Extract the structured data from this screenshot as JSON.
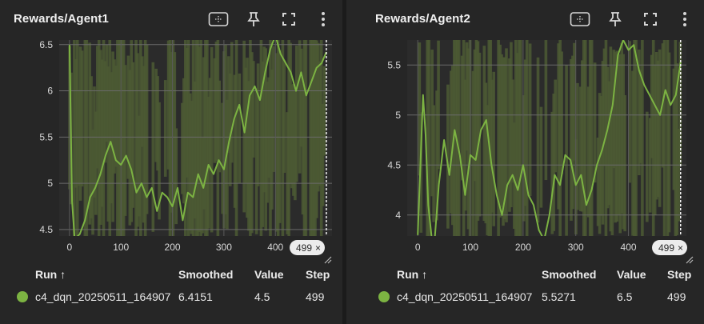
{
  "theme": {
    "series_color": "#7cb342",
    "band_color": "#4c5a34",
    "grid_color": "#6a6a6a"
  },
  "panels": [
    {
      "title": "Rewards/Agent1",
      "toolbar": [
        "fit-domain-icon",
        "pin-icon",
        "fullscreen-icon",
        "more-vert-icon"
      ],
      "chart_data": {
        "type": "line",
        "title": "Rewards/Agent1",
        "xlabel": "",
        "ylabel": "",
        "xlim": [
          -20,
          510
        ],
        "ylim": [
          4.43,
          6.55
        ],
        "x_ticks": [
          0,
          100,
          200,
          300,
          400
        ],
        "y_ticks": [
          4.5,
          5,
          5.5,
          6,
          6.5
        ],
        "y_tick_labels": [
          "4.5",
          "5",
          "5.5",
          "6",
          "6.5"
        ],
        "grid": true,
        "legend": "none",
        "series": [
          {
            "name": "c4_dqn_20250511_164907",
            "x": [
              0,
              5,
              10,
              20,
              30,
              40,
              50,
              60,
              70,
              80,
              90,
              100,
              110,
              120,
              130,
              140,
              150,
              160,
              170,
              180,
              190,
              200,
              210,
              220,
              230,
              240,
              250,
              260,
              270,
              280,
              290,
              300,
              310,
              320,
              330,
              340,
              350,
              360,
              370,
              380,
              390,
              400,
              410,
              420,
              430,
              440,
              450,
              460,
              470,
              480,
              490,
              499
            ],
            "y": [
              6.5,
              4.8,
              4.4,
              4.45,
              4.6,
              4.85,
              4.95,
              5.1,
              5.3,
              5.45,
              5.25,
              5.2,
              5.3,
              5.15,
              4.9,
              5.0,
              4.85,
              4.95,
              4.7,
              4.9,
              4.85,
              4.75,
              4.95,
              4.6,
              4.9,
              4.85,
              5.1,
              4.95,
              5.2,
              5.1,
              5.25,
              5.15,
              5.45,
              5.7,
              5.85,
              5.55,
              5.95,
              6.05,
              5.9,
              6.2,
              6.45,
              6.6,
              6.4,
              6.3,
              6.2,
              6.0,
              6.2,
              5.95,
              6.1,
              6.25,
              6.3,
              6.42
            ]
          }
        ],
        "current_step": 499
      },
      "step_badge": "499",
      "table": {
        "headers": {
          "run": "Run",
          "smoothed": "Smoothed",
          "value": "Value",
          "step": "Step"
        },
        "rows": [
          {
            "run": "c4_dqn_20250511_164907",
            "smoothed": "6.4151",
            "value": "4.5",
            "step": "499"
          }
        ]
      }
    },
    {
      "title": "Rewards/Agent2",
      "toolbar": [
        "fit-domain-icon",
        "pin-icon",
        "fullscreen-icon",
        "more-vert-icon"
      ],
      "chart_data": {
        "type": "line",
        "title": "Rewards/Agent2",
        "xlabel": "",
        "ylabel": "",
        "xlim": [
          -20,
          510
        ],
        "ylim": [
          3.79,
          5.75
        ],
        "x_ticks": [
          0,
          100,
          200,
          300,
          400
        ],
        "y_ticks": [
          4,
          4.5,
          5,
          5.5
        ],
        "y_tick_labels": [
          "4",
          "4.5",
          "5",
          "5.5"
        ],
        "grid": true,
        "legend": "none",
        "series": [
          {
            "name": "c4_dqn_20250511_164907",
            "x": [
              0,
              5,
              10,
              15,
              20,
              30,
              40,
              50,
              60,
              70,
              80,
              90,
              100,
              110,
              120,
              130,
              140,
              150,
              160,
              170,
              180,
              190,
              200,
              210,
              220,
              230,
              240,
              250,
              260,
              270,
              280,
              290,
              300,
              310,
              320,
              330,
              340,
              350,
              360,
              370,
              380,
              390,
              400,
              410,
              420,
              430,
              440,
              450,
              460,
              470,
              480,
              490,
              499
            ],
            "y": [
              3.8,
              4.5,
              5.2,
              4.8,
              4.1,
              3.6,
              4.3,
              4.75,
              4.4,
              4.85,
              4.6,
              4.2,
              4.6,
              4.55,
              4.85,
              4.95,
              4.5,
              4.2,
              4.0,
              4.3,
              4.4,
              4.25,
              4.5,
              4.2,
              4.1,
              3.85,
              3.75,
              4.0,
              4.4,
              4.3,
              4.6,
              4.55,
              4.3,
              4.4,
              4.1,
              4.25,
              4.5,
              4.65,
              4.85,
              5.1,
              5.6,
              5.75,
              5.65,
              5.7,
              5.45,
              5.3,
              5.2,
              5.1,
              5.0,
              5.25,
              5.1,
              5.2,
              5.53
            ]
          }
        ],
        "current_step": 499
      },
      "step_badge": "499",
      "table": {
        "headers": {
          "run": "Run",
          "smoothed": "Smoothed",
          "value": "Value",
          "step": "Step"
        },
        "rows": [
          {
            "run": "c4_dqn_20250511_164907",
            "smoothed": "5.5271",
            "value": "6.5",
            "step": "499"
          }
        ]
      }
    }
  ]
}
